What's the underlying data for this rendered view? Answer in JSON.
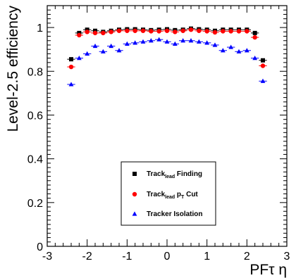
{
  "chart_data": {
    "type": "scatter",
    "ylabel": "Level-2.5 efficiency",
    "xlabel_parts": [
      "PF",
      "τ",
      " η"
    ],
    "xlim": [
      -3,
      3
    ],
    "ylim": [
      0,
      1.1
    ],
    "x_ticks": [
      "-3",
      "-2",
      "-1",
      "0",
      "1",
      "2",
      "3"
    ],
    "y_ticks": [
      "0",
      "0.2",
      "0.4",
      "0.6",
      "0.8",
      "1"
    ],
    "grid": false,
    "legend_placement": "bottom-center",
    "series": [
      {
        "name_parts": [
          "Track",
          "lead",
          " Finding"
        ],
        "marker": "square",
        "color": "#000000",
        "x": [
          -2.4,
          -2.2,
          -2.0,
          -1.8,
          -1.6,
          -1.4,
          -1.2,
          -1.0,
          -0.8,
          -0.6,
          -0.4,
          -0.2,
          0.0,
          0.2,
          0.4,
          0.6,
          0.8,
          1.0,
          1.2,
          1.4,
          1.6,
          1.8,
          2.0,
          2.2,
          2.4
        ],
        "values": [
          0.855,
          0.975,
          0.99,
          0.985,
          0.98,
          0.985,
          0.99,
          0.992,
          0.992,
          0.99,
          0.988,
          0.99,
          0.992,
          0.988,
          0.99,
          0.995,
          0.992,
          0.99,
          0.985,
          0.99,
          0.99,
          0.99,
          0.99,
          0.975,
          0.85
        ]
      },
      {
        "name_parts": [
          "Track",
          "lead",
          " p",
          "T",
          " Cut"
        ],
        "marker": "circle",
        "color": "#ff0000",
        "x": [
          -2.4,
          -2.2,
          -2.0,
          -1.8,
          -1.6,
          -1.4,
          -1.2,
          -1.0,
          -0.8,
          -0.6,
          -0.4,
          -0.2,
          0.0,
          0.2,
          0.4,
          0.6,
          0.8,
          1.0,
          1.2,
          1.4,
          1.6,
          1.8,
          2.0,
          2.2,
          2.4
        ],
        "values": [
          0.82,
          0.965,
          0.98,
          0.975,
          0.975,
          0.98,
          0.985,
          0.985,
          0.985,
          0.985,
          0.983,
          0.983,
          0.985,
          0.98,
          0.985,
          0.99,
          0.985,
          0.983,
          0.978,
          0.983,
          0.983,
          0.983,
          0.983,
          0.955,
          0.825
        ]
      },
      {
        "name_parts": [
          "Tracker Isolation"
        ],
        "marker": "triangle",
        "color": "#0000ff",
        "x": [
          -2.4,
          -2.2,
          -2.0,
          -1.8,
          -1.6,
          -1.4,
          -1.2,
          -1.0,
          -0.8,
          -0.6,
          -0.4,
          -0.2,
          0.0,
          0.2,
          0.4,
          0.6,
          0.8,
          1.0,
          1.2,
          1.4,
          1.6,
          1.8,
          2.0,
          2.2,
          2.4
        ],
        "values": [
          0.74,
          0.86,
          0.88,
          0.915,
          0.89,
          0.915,
          0.895,
          0.925,
          0.93,
          0.935,
          0.94,
          0.945,
          0.935,
          0.925,
          0.94,
          0.94,
          0.935,
          0.93,
          0.92,
          0.895,
          0.91,
          0.89,
          0.895,
          0.86,
          0.755
        ]
      }
    ]
  }
}
